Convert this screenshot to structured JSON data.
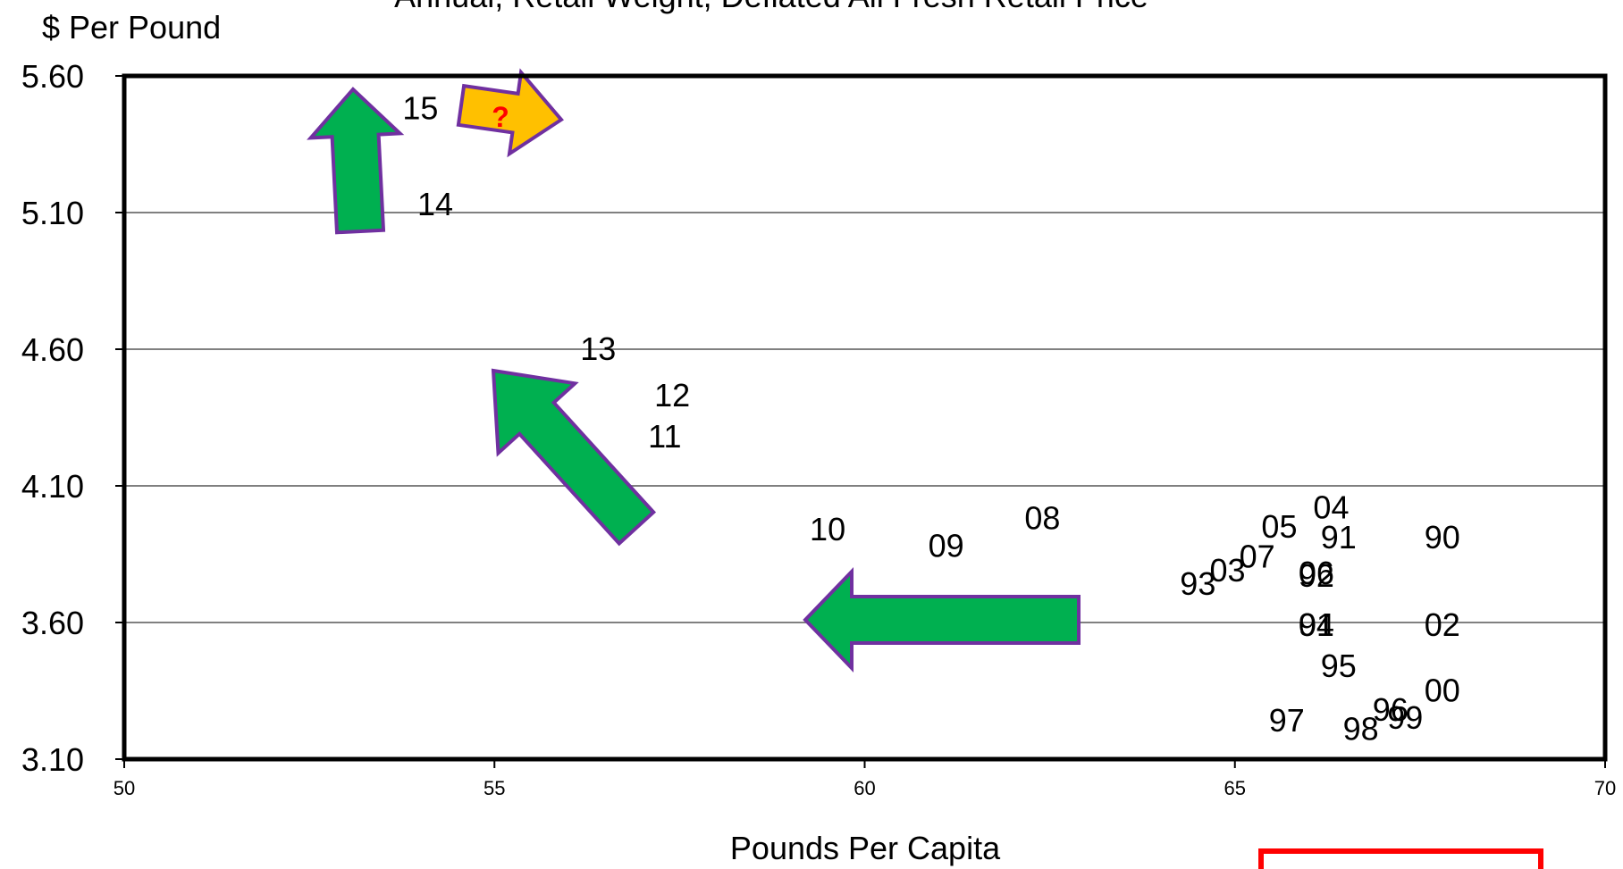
{
  "chart_data": {
    "type": "scatter",
    "title": "Annual, Retail Weight, Deflated All Fresh Retail Price",
    "ylabel": "$ Per Pound",
    "xlabel": "Pounds Per Capita",
    "xlim": [
      50,
      70
    ],
    "ylim": [
      3.1,
      5.6
    ],
    "xticks": [
      "50",
      "55",
      "60",
      "65",
      "70"
    ],
    "yticks": [
      "3.10",
      "3.60",
      "4.10",
      "4.60",
      "5.10",
      "5.60"
    ],
    "grid": true,
    "points": [
      {
        "label": "90",
        "x": 67.8,
        "y": 3.91
      },
      {
        "label": "91",
        "x": 66.4,
        "y": 3.91
      },
      {
        "label": "92",
        "x": 66.1,
        "y": 3.77
      },
      {
        "label": "93",
        "x": 64.5,
        "y": 3.74
      },
      {
        "label": "94",
        "x": 66.1,
        "y": 3.59
      },
      {
        "label": "95",
        "x": 66.4,
        "y": 3.44
      },
      {
        "label": "96",
        "x": 67.1,
        "y": 3.28
      },
      {
        "label": "97",
        "x": 65.7,
        "y": 3.24
      },
      {
        "label": "98",
        "x": 66.7,
        "y": 3.21
      },
      {
        "label": "99",
        "x": 67.3,
        "y": 3.25
      },
      {
        "label": "00",
        "x": 67.8,
        "y": 3.35
      },
      {
        "label": "01",
        "x": 66.1,
        "y": 3.59
      },
      {
        "label": "02",
        "x": 67.8,
        "y": 3.59
      },
      {
        "label": "03",
        "x": 64.9,
        "y": 3.79
      },
      {
        "label": "04",
        "x": 66.3,
        "y": 4.02
      },
      {
        "label": "05",
        "x": 65.6,
        "y": 3.95
      },
      {
        "label": "06",
        "x": 66.1,
        "y": 3.78
      },
      {
        "label": "07",
        "x": 65.3,
        "y": 3.84
      },
      {
        "label": "08",
        "x": 62.4,
        "y": 3.98
      },
      {
        "label": "09",
        "x": 61.1,
        "y": 3.88
      },
      {
        "label": "10",
        "x": 59.5,
        "y": 3.94
      },
      {
        "label": "11",
        "x": 57.3,
        "y": 4.28
      },
      {
        "label": "12",
        "x": 57.4,
        "y": 4.43
      },
      {
        "label": "13",
        "x": 56.4,
        "y": 4.6
      },
      {
        "label": "14",
        "x": 54.2,
        "y": 5.13
      },
      {
        "label": "15",
        "x": 54.0,
        "y": 5.48
      }
    ],
    "annotations": [
      {
        "type": "arrow",
        "direction": "left",
        "color": "#00b050"
      },
      {
        "type": "arrow",
        "direction": "up-left",
        "color": "#00b050"
      },
      {
        "type": "arrow",
        "direction": "up",
        "color": "#00b050"
      },
      {
        "type": "arrow",
        "direction": "up-right",
        "color": "#ffc000",
        "text": "?"
      }
    ]
  }
}
